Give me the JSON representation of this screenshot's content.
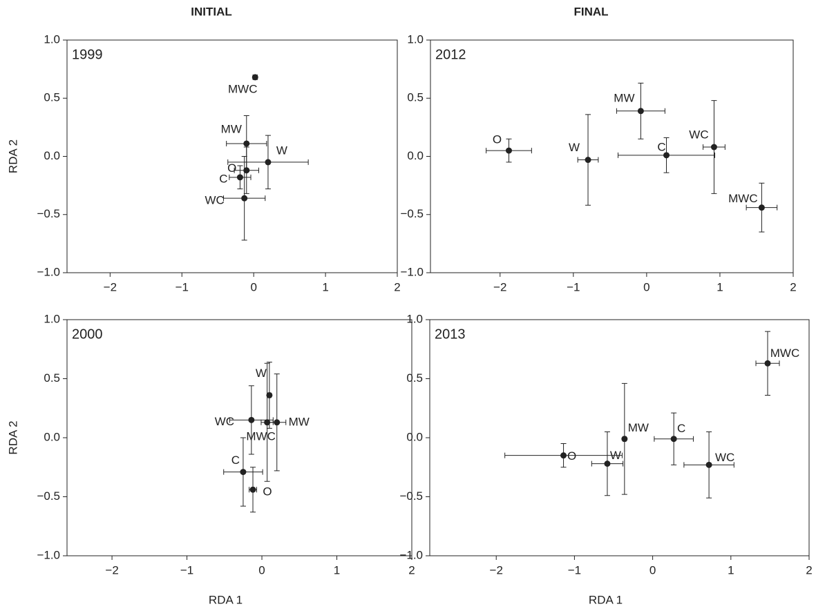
{
  "chart_data": [
    {
      "type": "scatter",
      "title": "INITIAL",
      "annotation": "1999",
      "ylabel": "RDA 2",
      "xlim": [
        -2.6,
        2.0
      ],
      "ylim": [
        -1.0,
        1.0
      ],
      "xticks": [
        {
          "value": -2,
          "label": "−2"
        },
        {
          "value": -1,
          "label": "−1"
        },
        0,
        1,
        2
      ],
      "yticks": [
        {
          "value": -1.0,
          "label": "−1.0"
        },
        {
          "value": -0.5,
          "label": "−0.5"
        },
        {
          "value": 0.0,
          "label": "0.0"
        },
        0.5,
        {
          "value": 1.0,
          "label": "1.0"
        }
      ],
      "color": "#222222",
      "labels": [
        "MWC",
        "MW",
        "W",
        "O",
        "C",
        "WC"
      ],
      "x": [
        0.02,
        -0.1,
        0.2,
        -0.1,
        -0.19,
        -0.13
      ],
      "y": [
        0.68,
        0.11,
        -0.05,
        -0.12,
        -0.18,
        -0.36
      ],
      "xerr": [
        0.03,
        0.28,
        0.56,
        0.17,
        0.15,
        0.29
      ],
      "yerr": [
        0.01,
        0.24,
        0.23,
        0.2,
        0.1,
        0.36
      ]
    },
    {
      "type": "scatter",
      "title": "FINAL",
      "annotation": "2012",
      "xlim": [
        -2.95,
        2.0
      ],
      "ylim": [
        -1.0,
        1.0
      ],
      "xticks": [
        {
          "value": -2,
          "label": "−2"
        },
        {
          "value": -1,
          "label": "−1"
        },
        0,
        1,
        2
      ],
      "yticks": [
        {
          "value": -1.0,
          "label": "−1.0"
        },
        {
          "value": -0.5,
          "label": "−0.5"
        },
        {
          "value": 0.0,
          "label": "0.0"
        },
        0.5,
        {
          "value": 1.0,
          "label": "1.0"
        }
      ],
      "color": "#222222",
      "labels": [
        "O",
        "W",
        "MW",
        "C",
        "WC",
        "MWC"
      ],
      "x": [
        -1.88,
        -0.8,
        -0.08,
        0.27,
        0.92,
        1.57
      ],
      "y": [
        0.05,
        -0.03,
        0.39,
        0.01,
        0.08,
        -0.44
      ],
      "xerr": [
        0.31,
        0.14,
        0.33,
        0.66,
        0.15,
        0.21
      ],
      "yerr": [
        0.1,
        0.39,
        0.24,
        0.15,
        0.4,
        0.21
      ]
    },
    {
      "type": "scatter",
      "annotation": "2000",
      "xlabel": "RDA 1",
      "ylabel": "RDA 2",
      "xlim": [
        -2.6,
        2.0
      ],
      "ylim": [
        -1.0,
        1.0
      ],
      "xticks": [
        {
          "value": -2,
          "label": "−2"
        },
        {
          "value": -1,
          "label": "−1"
        },
        0,
        1,
        2
      ],
      "yticks": [
        {
          "value": -1.0,
          "label": "−1.0"
        },
        {
          "value": -0.5,
          "label": "−0.5"
        },
        {
          "value": 0.0,
          "label": "0.0"
        },
        0.5,
        {
          "value": 1.0,
          "label": "1.0"
        }
      ],
      "color": "#222222",
      "labels": [
        "W",
        "WC",
        "MWC",
        "MW",
        "C",
        "O"
      ],
      "x": [
        0.1,
        -0.14,
        0.07,
        0.2,
        -0.25,
        -0.12
      ],
      "y": [
        0.36,
        0.15,
        0.13,
        0.13,
        -0.29,
        -0.44
      ],
      "xerr": [
        0.02,
        0.29,
        0.08,
        0.12,
        0.26,
        0.05
      ],
      "yerr": [
        0.28,
        0.29,
        0.5,
        0.41,
        0.29,
        0.19
      ]
    },
    {
      "type": "scatter",
      "annotation": "2013",
      "xlabel": "RDA 1",
      "xlim": [
        -2.85,
        2.0
      ],
      "ylim": [
        -1.0,
        1.0
      ],
      "xticks": [
        {
          "value": -2,
          "label": "−2"
        },
        {
          "value": -1,
          "label": "−1"
        },
        0,
        1,
        2
      ],
      "yticks": [
        {
          "value": -1.0,
          "label": "−1.0"
        },
        {
          "value": -0.5,
          "label": "−0.5"
        },
        {
          "value": 0.0,
          "label": "0.0"
        },
        0.5,
        {
          "value": 1.0,
          "label": "1.0"
        }
      ],
      "color": "#222222",
      "labels": [
        "MWC",
        "MW",
        "C",
        "O",
        "W",
        "WC"
      ],
      "x": [
        1.47,
        -0.36,
        0.27,
        -1.14,
        -0.58,
        0.72
      ],
      "y": [
        0.63,
        -0.01,
        -0.01,
        -0.15,
        -0.22,
        -0.23
      ],
      "xerr": [
        0.15,
        0.02,
        0.25,
        0.75,
        0.2,
        0.32
      ],
      "yerr": [
        0.27,
        0.47,
        0.22,
        0.1,
        0.27,
        0.28
      ]
    }
  ]
}
